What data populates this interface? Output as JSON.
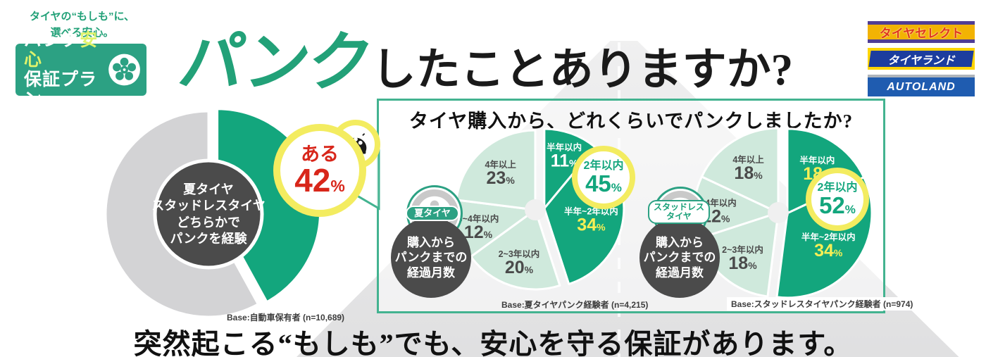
{
  "brand": {
    "tagline_line1": "タイヤの“もしも”に、",
    "tagline_line2": "選べる安心。",
    "badge_line1a": "パンク",
    "badge_line1b": "安心",
    "badge_line2": "保証プラン",
    "badge_bg": "#2ca183",
    "badge_highlight": "#dff36b"
  },
  "headline": {
    "green_part": "パンク",
    "black_part": "したことありますか?"
  },
  "logos": [
    {
      "text": "タイヤセレクト",
      "bg": "#f2b303",
      "bar": "#4f3d95",
      "text_color": "#e0361c"
    },
    {
      "text": "タイヤランド",
      "bg": "#ffd500",
      "band": "#1c3d9e",
      "text_color": "#ffffff"
    },
    {
      "text": "AUTOLAND",
      "bg": "#1f5cb0",
      "bar": "#aeb4ba",
      "text_color": "#ffffff"
    }
  ],
  "question_box_title": "タイヤ購入から、どれくらいでパンクしましたか?",
  "footer_tagline": "突然起こる“もしも”でも、安心を守る保証があります。",
  "colors": {
    "dark_green": "#13a67d",
    "light_green": "#cfe9dc",
    "gray_slice": "#d3d3d5",
    "callout_ring": "#f3ec60",
    "red": "#d8261a",
    "yellow_text": "#f7ef55",
    "dark_circle": "#4b4b4b",
    "box_border": "#43b390"
  },
  "icons": [
    "wheel-icon",
    "flat-tire-icon"
  ],
  "chart_data": [
    {
      "type": "pie",
      "name": "puncture-experience-donut",
      "center_label": [
        "夏タイヤ",
        "スタッドレスタイヤ",
        "どちらかで",
        "パンクを経験"
      ],
      "center_circle": {
        "r": 76,
        "fill": "#4b4b4b",
        "stroke": "#ffffff"
      },
      "callout": {
        "label": "ある",
        "value": "42",
        "unit": "%"
      },
      "slices": [
        {
          "label": "ある",
          "value": 42,
          "color": "#13a67d",
          "exploded": true,
          "show_label": false
        },
        {
          "label": "",
          "value": 58,
          "color": "#d3d3d5",
          "show_label": false
        }
      ],
      "base": "Base:自動車保有者 (n=10,689)"
    },
    {
      "type": "pie",
      "name": "summer-tire-months-to-puncture",
      "badge": "夏タイヤ",
      "badge_caption": [
        "購入から",
        "パンクまでの",
        "経過月数"
      ],
      "callout": {
        "label": "2年以内",
        "value": "45",
        "unit": "%"
      },
      "slices": [
        {
          "label": "半年以内",
          "value": 11,
          "color": "#13a67d",
          "exploded": true,
          "show_label": true,
          "label_color": "#ffffff",
          "value_color": "#ffffff"
        },
        {
          "label": "半年~2年以内",
          "value": 34,
          "color": "#13a67d",
          "exploded": true,
          "show_label": true,
          "label_color": "#ffffff",
          "value_color": "#f7ef55"
        },
        {
          "label": "2~3年以内",
          "value": 20,
          "color": "#cfe9dc",
          "show_label": true,
          "label_color": "#4a4a4a",
          "value_color": "#4a4a4a"
        },
        {
          "label": "3~4年以内",
          "value": 12,
          "color": "#cfe9dc",
          "show_label": true,
          "label_color": "#4a4a4a",
          "value_color": "#4a4a4a"
        },
        {
          "label": "4年以上",
          "value": 23,
          "color": "#cfe9dc",
          "show_label": true,
          "label_color": "#4a4a4a",
          "value_color": "#4a4a4a"
        }
      ],
      "hole": 15,
      "base": "Base:夏タイヤパンク経験者 (n=4,215)"
    },
    {
      "type": "pie",
      "name": "studless-tire-months-to-puncture",
      "badge": [
        "スタッドレス",
        "タイヤ"
      ],
      "badge_caption": [
        "購入から",
        "パンクまでの",
        "経過月数"
      ],
      "callout": {
        "label": "2年以内",
        "value": "52",
        "unit": "%"
      },
      "slices": [
        {
          "label": "半年以内",
          "value": 18,
          "color": "#13a67d",
          "exploded": true,
          "show_label": true,
          "label_color": "#ffffff",
          "value_color": "#f7ef55"
        },
        {
          "label": "半年~2年以内",
          "value": 34,
          "color": "#13a67d",
          "exploded": true,
          "show_label": true,
          "label_color": "#ffffff",
          "value_color": "#f7ef55"
        },
        {
          "label": "2~3年以内",
          "value": 18,
          "color": "#cfe9dc",
          "show_label": true,
          "label_color": "#4a4a4a",
          "value_color": "#4a4a4a"
        },
        {
          "label": "3~4年以内",
          "value": 12,
          "color": "#cfe9dc",
          "show_label": true,
          "label_color": "#4a4a4a",
          "value_color": "#4a4a4a"
        },
        {
          "label": "4年以上",
          "value": 18,
          "color": "#cfe9dc",
          "show_label": true,
          "label_color": "#4a4a4a",
          "value_color": "#4a4a4a"
        }
      ],
      "hole": 15,
      "base": "Base:スタッドレスタイヤパンク経験者 (n=974)"
    }
  ]
}
